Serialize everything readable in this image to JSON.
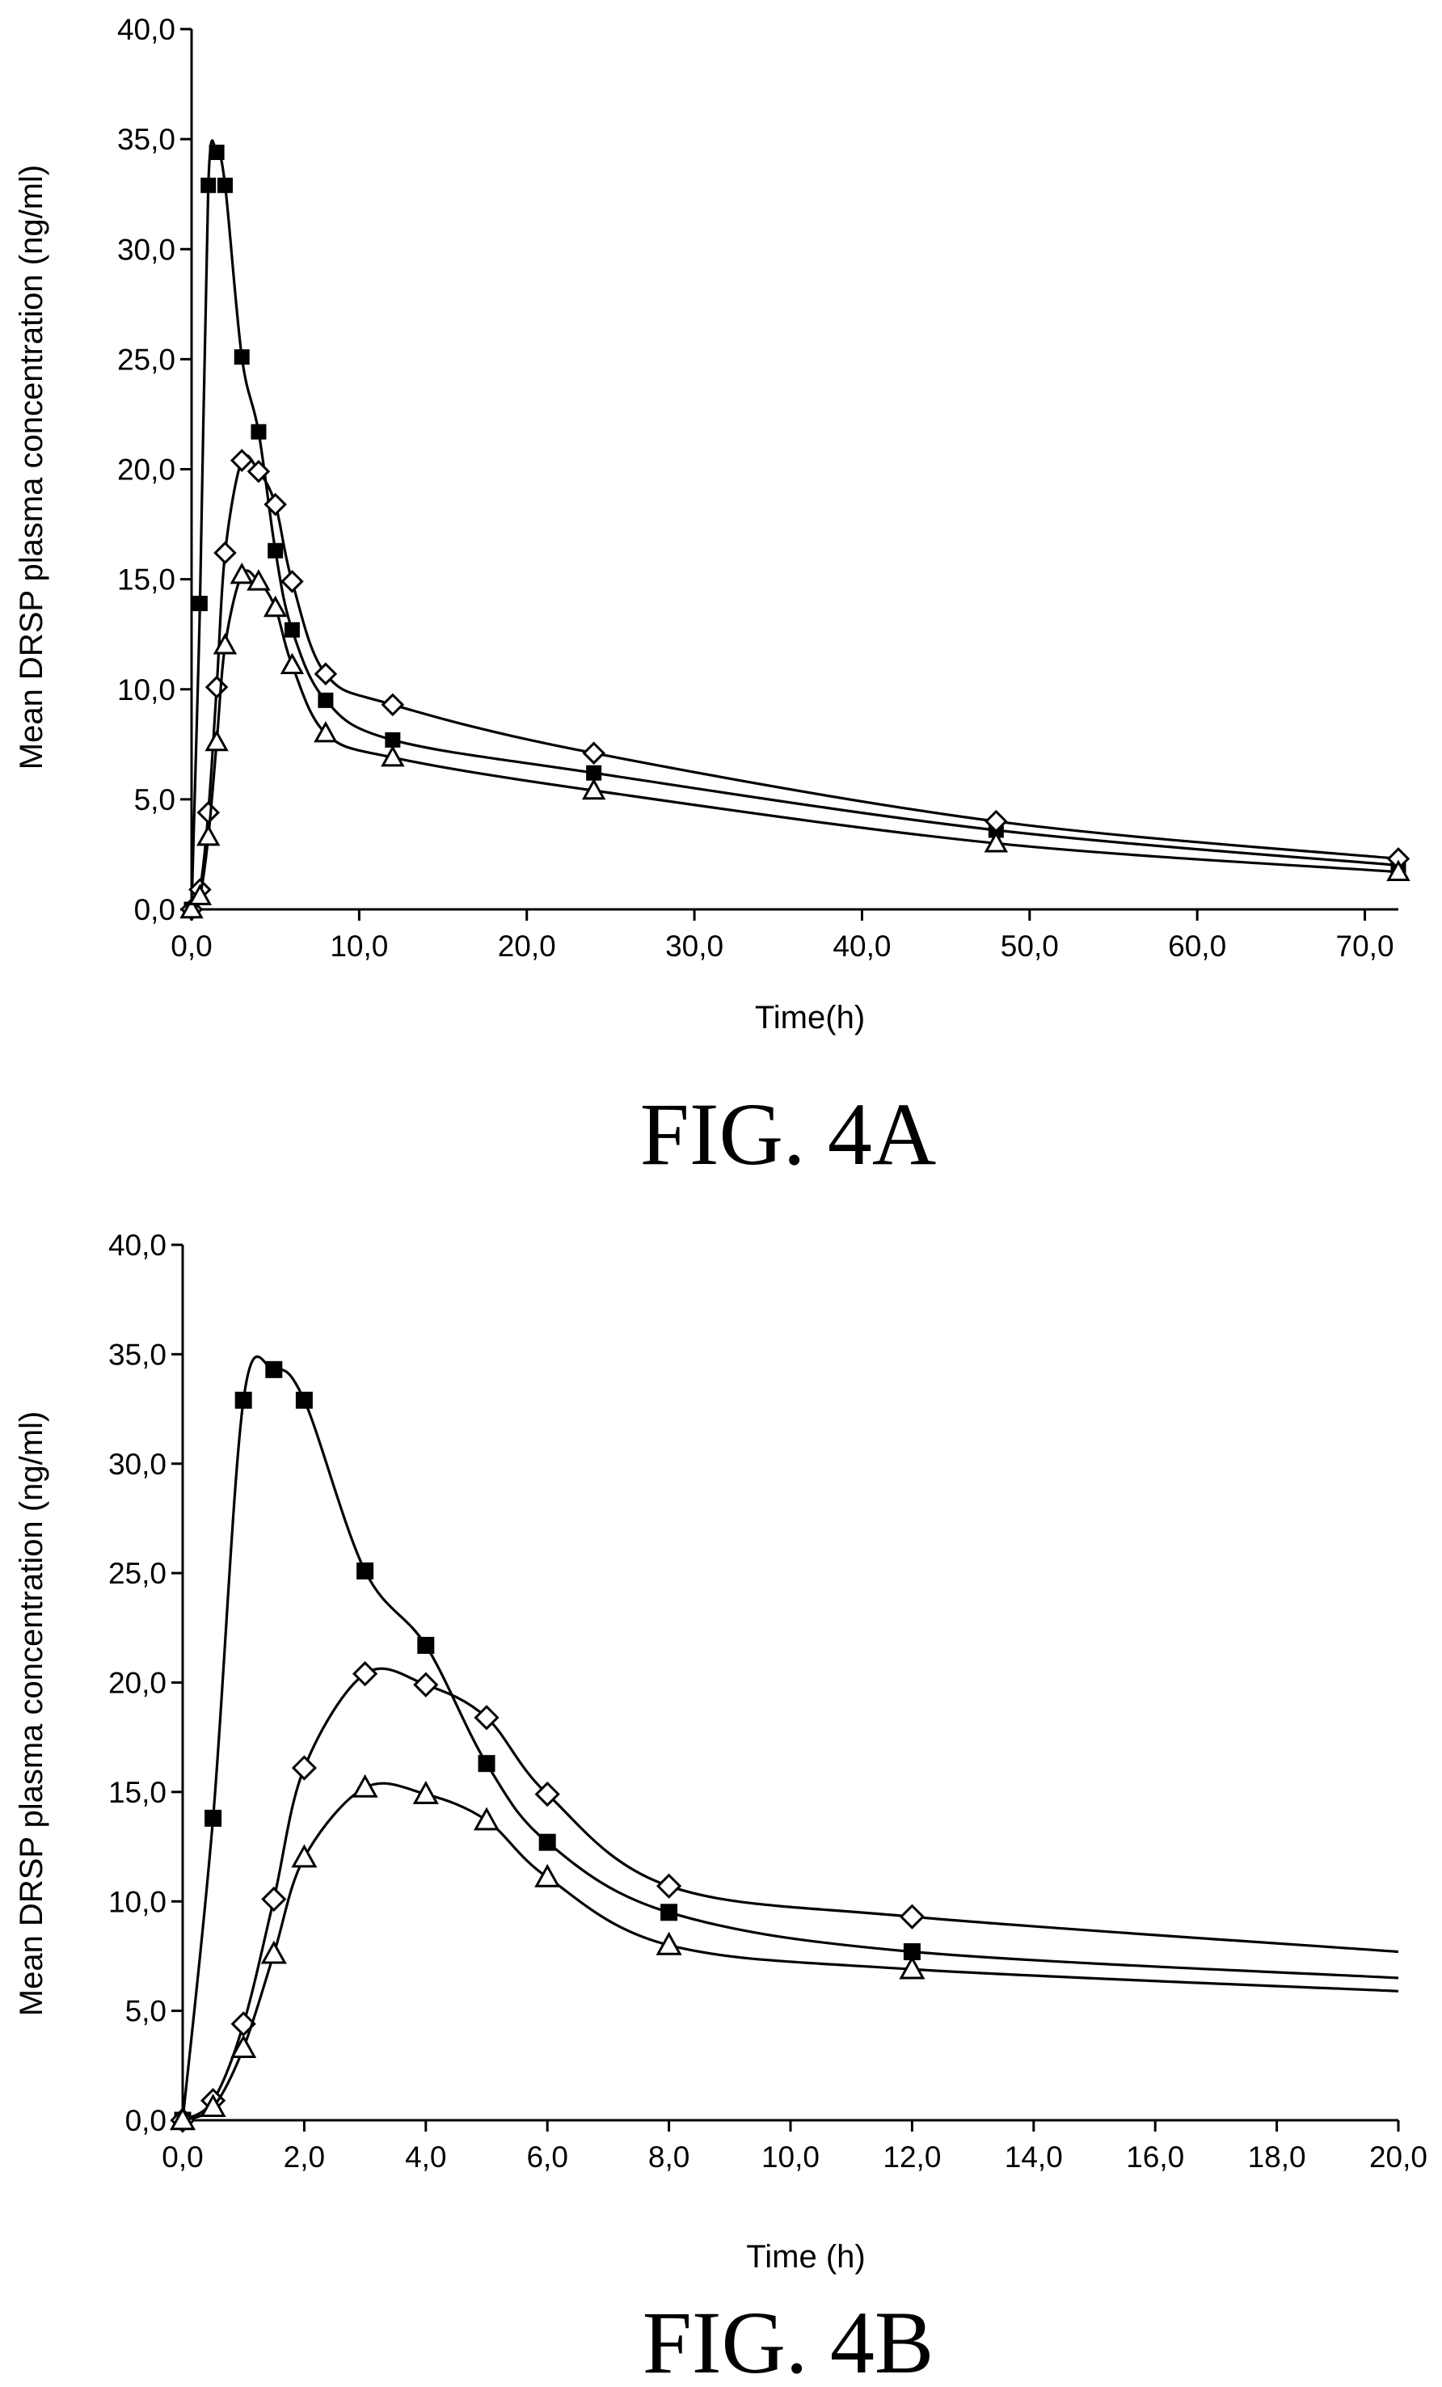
{
  "chart_data": [
    {
      "type": "line",
      "caption": "FIG. 4A",
      "xlabel": "Time(h)",
      "ylabel": "Mean DRSP plasma concentration (ng/ml)",
      "xlim": [
        0,
        72
      ],
      "ylim": [
        0,
        40
      ],
      "xticks": [
        "0,0",
        "10,0",
        "20,0",
        "30,0",
        "40,0",
        "50,0",
        "60,0",
        "70,0"
      ],
      "yticks": [
        "0,0",
        "5,0",
        "10,0",
        "15,0",
        "20,0",
        "25,0",
        "30,0",
        "35,0",
        "40,0"
      ],
      "series": [
        {
          "marker": "filled-square",
          "x": [
            0,
            0.5,
            1,
            1.5,
            2,
            3,
            4,
            5,
            6,
            8,
            12,
            24,
            48,
            72
          ],
          "y": [
            0,
            13.9,
            32.9,
            34.4,
            32.9,
            25.1,
            21.7,
            16.3,
            12.7,
            9.5,
            7.7,
            6.2,
            3.6,
            2.0
          ]
        },
        {
          "marker": "open-diamond",
          "x": [
            0,
            0.5,
            1,
            1.5,
            2,
            3,
            4,
            5,
            6,
            8,
            12,
            24,
            48,
            72
          ],
          "y": [
            0,
            0.9,
            4.4,
            10.1,
            16.2,
            20.4,
            19.9,
            18.4,
            14.9,
            10.7,
            9.3,
            7.1,
            4.0,
            2.3
          ]
        },
        {
          "marker": "open-triangle",
          "x": [
            0,
            0.5,
            1,
            1.5,
            2,
            3,
            4,
            5,
            6,
            8,
            12,
            24,
            48,
            72
          ],
          "y": [
            0,
            0.6,
            3.3,
            7.6,
            12.0,
            15.2,
            14.9,
            13.7,
            11.1,
            8.0,
            6.9,
            5.4,
            3.0,
            1.7
          ]
        }
      ]
    },
    {
      "type": "line",
      "caption": "FIG. 4B",
      "xlabel": "Time (h)",
      "ylabel": "Mean DRSP plasma concentration (ng/ml)",
      "xlim": [
        0,
        20
      ],
      "ylim": [
        0,
        40
      ],
      "xticks": [
        "0,0",
        "2,0",
        "4,0",
        "6,0",
        "8,0",
        "10,0",
        "12,0",
        "14,0",
        "16,0",
        "18,0",
        "20,0"
      ],
      "yticks": [
        "0,0",
        "5,0",
        "10,0",
        "15,0",
        "20,0",
        "25,0",
        "30,0",
        "35,0",
        "40,0"
      ],
      "series": [
        {
          "marker": "filled-square",
          "x": [
            0,
            0.5,
            1,
            1.5,
            2,
            3,
            4,
            5,
            6,
            8,
            12
          ],
          "y": [
            0,
            13.8,
            32.9,
            34.3,
            32.9,
            25.1,
            21.7,
            16.3,
            12.7,
            9.5,
            7.7
          ],
          "trend_end": [
            20,
            6.5
          ]
        },
        {
          "marker": "open-diamond",
          "x": [
            0,
            0.5,
            1,
            1.5,
            2,
            3,
            4,
            5,
            6,
            8,
            12
          ],
          "y": [
            0,
            0.9,
            4.4,
            10.1,
            16.1,
            20.4,
            19.9,
            18.4,
            14.9,
            10.7,
            9.3
          ],
          "trend_end": [
            20,
            7.7
          ]
        },
        {
          "marker": "open-triangle",
          "x": [
            0,
            0.5,
            1,
            1.5,
            2,
            3,
            4,
            5,
            6,
            8,
            12
          ],
          "y": [
            0,
            0.6,
            3.3,
            7.6,
            12.0,
            15.2,
            14.9,
            13.7,
            11.1,
            8.0,
            6.9
          ],
          "trend_end": [
            20,
            5.9
          ]
        }
      ]
    }
  ]
}
